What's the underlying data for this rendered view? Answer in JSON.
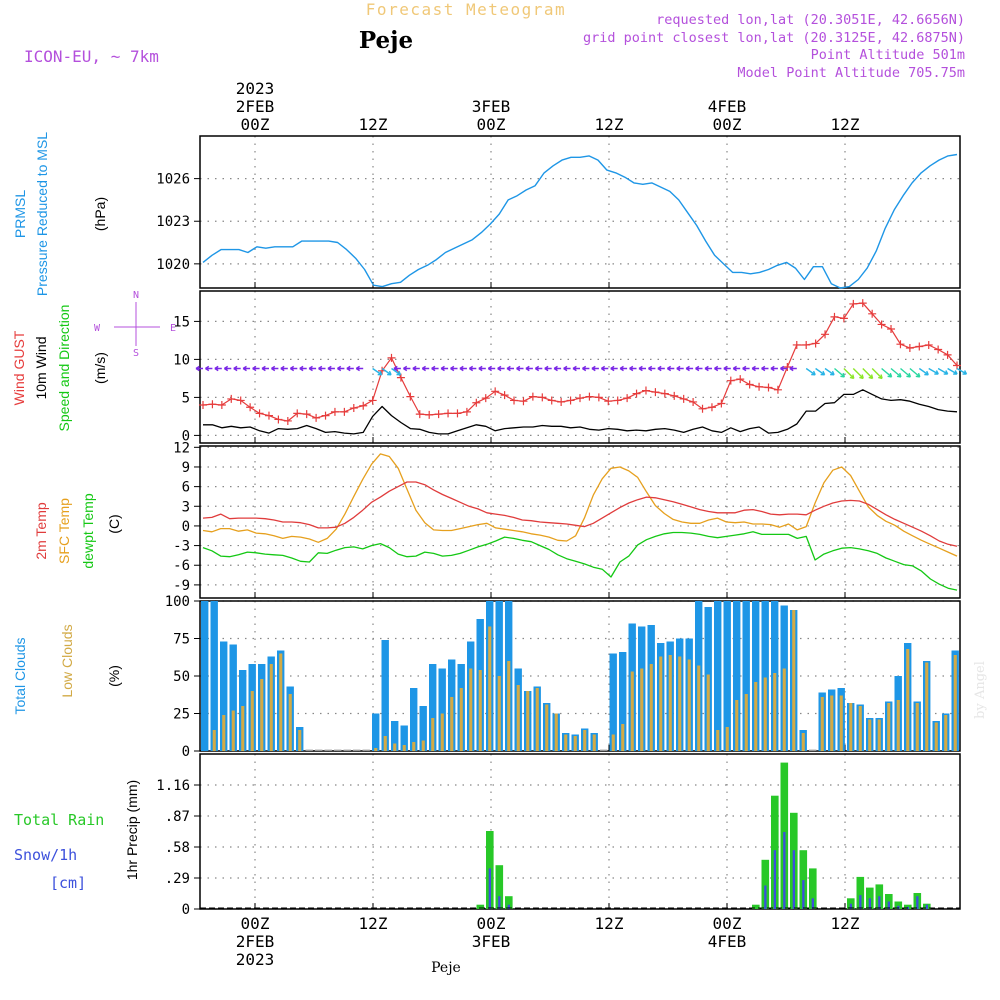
{
  "header": {
    "title": "Forecast Meteogram",
    "station": "Peje",
    "model": "ICON-EU, ~ 7km",
    "requested": "requested lon,lat (20.3051E, 42.6656N)",
    "gridpoint": "grid point closest lon,lat (20.3125E, 42.6875N)",
    "altitude": "Point Altitude 501m",
    "model_altitude": "Model Point Altitude 705.75m",
    "footer_station": "Peje",
    "credit": "by Angel"
  },
  "time_axis": {
    "top_labels": [
      {
        "lines": [
          "2023",
          "2FEB",
          "00Z"
        ]
      },
      {
        "lines": [
          "12Z"
        ]
      },
      {
        "lines": [
          "3FEB",
          "00Z"
        ]
      },
      {
        "lines": [
          "12Z"
        ]
      },
      {
        "lines": [
          "4FEB",
          "00Z"
        ]
      },
      {
        "lines": [
          "12Z"
        ]
      }
    ],
    "bottom_labels": [
      {
        "lines": [
          "00Z",
          "2FEB",
          "2023"
        ]
      },
      {
        "lines": [
          "12Z"
        ]
      },
      {
        "lines": [
          "00Z",
          "3FEB"
        ]
      },
      {
        "lines": [
          "12Z"
        ]
      },
      {
        "lines": [
          "00Z",
          "4FEB"
        ]
      },
      {
        "lines": [
          "12Z"
        ]
      }
    ]
  },
  "colors": {
    "pressure": "#1e96e6",
    "gust": "#e63c3c",
    "wind": "#000000",
    "t2m": "#e03c3c",
    "sfc": "#e6a01e",
    "dewpt": "#14c814",
    "total_clouds": "#1e96e6",
    "low_clouds": "#d2aa46",
    "rain": "#28c828",
    "snow": "#3c50dc",
    "magenta": "#b450dc",
    "grid": "#888888"
  },
  "chart_data": [
    {
      "type": "line",
      "panel": "pressure",
      "ylabel_lines": [
        "PRMSL",
        "Pressure Reduced to MSL"
      ],
      "unit": "(hPa)",
      "yticks": [
        1020,
        1023,
        1026
      ],
      "ylim": [
        1018.3,
        1029.0
      ],
      "series": [
        {
          "name": "PRMSL",
          "values": [
            1020.1,
            1020.6,
            1021.0,
            1021.0,
            1021.0,
            1020.8,
            1021.2,
            1021.1,
            1021.2,
            1021.2,
            1021.2,
            1021.6,
            1021.6,
            1021.6,
            1021.6,
            1021.5,
            1021.0,
            1020.4,
            1019.6,
            1018.5,
            1018.4,
            1018.6,
            1018.7,
            1019.2,
            1019.6,
            1019.9,
            1020.3,
            1020.8,
            1021.1,
            1021.4,
            1021.7,
            1022.2,
            1022.8,
            1023.5,
            1024.5,
            1024.8,
            1025.2,
            1025.5,
            1026.4,
            1026.9,
            1027.3,
            1027.5,
            1027.5,
            1027.6,
            1027.3,
            1026.6,
            1026.4,
            1026.1,
            1025.7,
            1025.6,
            1025.7,
            1025.4,
            1025.1,
            1024.5,
            1023.6,
            1022.7,
            1021.6,
            1020.6,
            1020.0,
            1019.4,
            1019.4,
            1019.3,
            1019.4,
            1019.6,
            1019.9,
            1020.1,
            1019.7,
            1018.9,
            1019.8,
            1019.8,
            1018.6,
            1018.3,
            1018.4,
            1018.9,
            1019.7,
            1020.9,
            1022.5,
            1023.8,
            1024.8,
            1025.7,
            1026.4,
            1026.9,
            1027.3,
            1027.6,
            1027.7
          ]
        }
      ]
    },
    {
      "type": "line",
      "panel": "wind",
      "ylabel_lines": [
        "Wind GUST",
        "10m Wind",
        "Speed and Direction"
      ],
      "unit": "(m/s)",
      "compass": {
        "n": "N",
        "s": "S",
        "w": "W",
        "e": "E"
      },
      "yticks": [
        0,
        5,
        10,
        15
      ],
      "ylim": [
        -1,
        19
      ],
      "series": [
        {
          "name": "Wind GUST",
          "values": [
            4.0,
            4.1,
            4.0,
            4.8,
            4.6,
            3.7,
            2.9,
            2.6,
            2.1,
            1.9,
            2.9,
            2.8,
            2.3,
            2.6,
            3.1,
            3.1,
            3.6,
            3.9,
            4.6,
            8.5,
            10.2,
            7.6,
            5.1,
            2.8,
            2.7,
            2.8,
            2.9,
            2.9,
            3.1,
            4.3,
            4.9,
            5.8,
            5.3,
            4.6,
            4.5,
            5.1,
            5.0,
            4.6,
            4.4,
            4.6,
            4.9,
            5.1,
            5.0,
            4.5,
            4.6,
            4.9,
            5.5,
            5.9,
            5.7,
            5.5,
            5.2,
            4.8,
            4.4,
            3.5,
            3.7,
            4.2,
            7.2,
            7.4,
            6.7,
            6.4,
            6.3,
            6.0,
            9.0,
            11.9,
            11.9,
            12.1,
            13.3,
            15.6,
            15.4,
            17.3,
            17.4,
            16.0,
            14.6,
            14.0,
            12.0,
            11.5,
            11.7,
            11.9,
            11.3,
            10.6,
            9.2
          ]
        },
        {
          "name": "10m Wind",
          "values": [
            1.4,
            1.4,
            1.0,
            1.2,
            1.0,
            1.1,
            0.6,
            0.3,
            0.9,
            0.8,
            0.9,
            1.3,
            0.9,
            0.4,
            0.5,
            0.3,
            0.2,
            0.4,
            2.5,
            3.8,
            2.6,
            1.7,
            0.9,
            0.8,
            0.4,
            0.2,
            0.2,
            0.6,
            1.0,
            1.4,
            1.2,
            0.6,
            0.9,
            1.0,
            1.1,
            1.1,
            1.3,
            1.2,
            1.2,
            1.0,
            1.1,
            0.8,
            0.7,
            0.9,
            0.8,
            0.6,
            0.7,
            0.6,
            0.8,
            0.9,
            0.7,
            0.4,
            0.8,
            1.1,
            0.6,
            0.4,
            1.0,
            0.5,
            0.9,
            1.1,
            0.3,
            0.4,
            0.8,
            1.5,
            3.2,
            3.2,
            4.2,
            4.3,
            5.4,
            5.4,
            6.0,
            5.4,
            4.8,
            4.6,
            4.7,
            4.5,
            4.1,
            3.8,
            3.4,
            3.2,
            3.1
          ]
        }
      ]
    },
    {
      "type": "line",
      "panel": "temperature",
      "ylabel_lines": [
        "2m Temp",
        "SFC Temp",
        "dewpt Temp"
      ],
      "unit": "(C)",
      "yticks": [
        -9,
        -6,
        -3,
        0,
        3,
        6,
        9,
        12
      ],
      "ylim": [
        -11,
        12.2
      ],
      "series": [
        {
          "name": "2m Temp",
          "values": [
            1.2,
            1.3,
            1.8,
            1.1,
            1.2,
            1.2,
            1.2,
            1.1,
            0.9,
            0.6,
            0.6,
            0.5,
            0.2,
            -0.3,
            -0.3,
            -0.2,
            0.4,
            1.3,
            2.4,
            3.6,
            4.4,
            5.3,
            6.0,
            6.7,
            6.7,
            6.3,
            5.5,
            4.8,
            4.2,
            3.6,
            3.0,
            2.6,
            2.0,
            1.8,
            1.6,
            1.3,
            0.9,
            0.8,
            0.6,
            0.5,
            0.4,
            0.3,
            0.1,
            -0.1,
            0.4,
            1.2,
            2.0,
            2.8,
            3.5,
            4.0,
            4.4,
            4.3,
            4.0,
            3.7,
            3.3,
            2.9,
            2.5,
            2.2,
            2.0,
            2.0,
            2.0,
            2.4,
            2.5,
            2.2,
            1.8,
            1.7,
            1.8,
            1.8,
            1.7,
            2.4,
            3.0,
            3.5,
            3.8,
            3.9,
            3.8,
            3.3,
            2.5,
            1.7,
            1.0,
            0.4,
            -0.2,
            -0.8,
            -1.5,
            -2.3,
            -2.8,
            -3.1
          ]
        },
        {
          "name": "SFC Temp",
          "values": [
            -0.7,
            -0.9,
            -0.4,
            -0.4,
            -0.8,
            -0.6,
            -1.1,
            -1.2,
            -1.5,
            -1.9,
            -1.6,
            -1.7,
            -2.0,
            -2.5,
            -1.9,
            -0.5,
            1.8,
            4.5,
            7.1,
            9.4,
            11.0,
            10.6,
            8.8,
            5.6,
            2.4,
            0.5,
            -0.6,
            -0.7,
            -0.7,
            -0.4,
            -0.1,
            0.2,
            0.4,
            -0.3,
            -0.5,
            -0.7,
            -0.9,
            -1.2,
            -1.4,
            -1.7,
            -2.2,
            -2.3,
            -1.5,
            1.2,
            4.7,
            7.2,
            8.8,
            9.0,
            8.4,
            7.4,
            5.2,
            3.1,
            1.9,
            1.0,
            0.6,
            0.4,
            0.4,
            0.9,
            1.2,
            0.6,
            0.5,
            0.6,
            0.3,
            0.3,
            0.2,
            -0.2,
            0.3,
            -0.6,
            -0.1,
            3.5,
            6.6,
            8.5,
            9.0,
            7.7,
            5.3,
            2.9,
            1.6,
            0.7,
            0.1,
            -0.8,
            -1.5,
            -2.2,
            -2.8,
            -3.4,
            -4.0,
            -4.6
          ]
        },
        {
          "name": "dewpt Temp",
          "values": [
            -3.3,
            -3.8,
            -4.6,
            -4.7,
            -4.4,
            -4.0,
            -4.1,
            -4.3,
            -4.4,
            -4.5,
            -4.9,
            -5.4,
            -5.5,
            -4.1,
            -4.2,
            -3.7,
            -3.3,
            -3.2,
            -3.5,
            -3.0,
            -2.7,
            -3.3,
            -4.3,
            -4.7,
            -4.6,
            -4.0,
            -4.2,
            -4.6,
            -4.5,
            -4.2,
            -3.7,
            -3.2,
            -2.8,
            -2.3,
            -1.7,
            -1.9,
            -2.2,
            -2.4,
            -3.0,
            -3.6,
            -4.4,
            -5.0,
            -5.4,
            -5.8,
            -6.3,
            -6.6,
            -7.8,
            -5.5,
            -4.6,
            -2.9,
            -2.1,
            -1.6,
            -1.2,
            -1.0,
            -1.0,
            -1.1,
            -1.3,
            -1.6,
            -1.8,
            -1.6,
            -1.4,
            -1.2,
            -0.9,
            -1.3,
            -1.3,
            -1.3,
            -1.3,
            -1.9,
            -1.6,
            -5.2,
            -4.3,
            -3.8,
            -3.4,
            -3.3,
            -3.5,
            -3.8,
            -4.2,
            -4.9,
            -5.4,
            -5.9,
            -6.1,
            -6.9,
            -8.1,
            -8.9,
            -9.5,
            -9.8
          ]
        }
      ]
    },
    {
      "type": "bar",
      "panel": "clouds",
      "ylabel_lines": [
        "Total Clouds",
        "Low Clouds"
      ],
      "unit": "(%)",
      "yticks": [
        0,
        25,
        50,
        75,
        100
      ],
      "ylim": [
        0,
        100
      ],
      "series": [
        {
          "name": "Total Clouds",
          "values": [
            100,
            100,
            73,
            71,
            54,
            58,
            58,
            63,
            67,
            43,
            16,
            0,
            0,
            0,
            0,
            0,
            0,
            0,
            25,
            74,
            20,
            17,
            42,
            30,
            58,
            55,
            61,
            58,
            73,
            88,
            100,
            100,
            100,
            55,
            40,
            43,
            32,
            25,
            12,
            11,
            15,
            12,
            0,
            65,
            66,
            85,
            83,
            84,
            72,
            73,
            75,
            75,
            100,
            96,
            100,
            100,
            100,
            100,
            100,
            100,
            100,
            97,
            94,
            14,
            0,
            39,
            41,
            42,
            32,
            31,
            22,
            22,
            33,
            50,
            72,
            33,
            60,
            20,
            25,
            67
          ]
        },
        {
          "name": "Low Clouds",
          "values": [
            0,
            14,
            24,
            27,
            30,
            40,
            48,
            58,
            65,
            38,
            14,
            0,
            0,
            0,
            0,
            0,
            0,
            0,
            2,
            10,
            5,
            4,
            6,
            7,
            22,
            25,
            36,
            42,
            55,
            54,
            83,
            50,
            60,
            44,
            40,
            42,
            31,
            25,
            11,
            10,
            14,
            11,
            0,
            11,
            18,
            53,
            55,
            58,
            63,
            64,
            63,
            61,
            57,
            51,
            14,
            16,
            34,
            38,
            46,
            49,
            52,
            55,
            94,
            12,
            0,
            36,
            37,
            37,
            32,
            30,
            21,
            21,
            32,
            34,
            68,
            32,
            59,
            19,
            24,
            64
          ]
        }
      ]
    },
    {
      "type": "bar",
      "panel": "precip",
      "ylabel_lines": [
        "1hr Precip (mm)"
      ],
      "legend": {
        "rain": "Total Rain",
        "snow": "Snow/1h",
        "snow_unit": "[cm]"
      },
      "yticks": [
        0,
        0.29,
        0.58,
        0.87,
        1.16
      ],
      "ylim": [
        0,
        1.45
      ],
      "series": [
        {
          "name": "Total Rain",
          "values": [
            0,
            0,
            0,
            0,
            0,
            0,
            0,
            0,
            0,
            0,
            0,
            0,
            0,
            0,
            0,
            0,
            0,
            0,
            0,
            0,
            0,
            0,
            0,
            0,
            0,
            0,
            0,
            0,
            0,
            0.04,
            0.73,
            0.41,
            0.12,
            0,
            0,
            0,
            0,
            0,
            0,
            0,
            0,
            0,
            0,
            0,
            0,
            0,
            0,
            0,
            0,
            0,
            0,
            0,
            0,
            0,
            0,
            0,
            0,
            0,
            0.04,
            0.46,
            1.06,
            1.37,
            0.9,
            0.55,
            0.38,
            0,
            0,
            0,
            0.1,
            0.3,
            0.2,
            0.23,
            0.14,
            0.07,
            0.04,
            0.15,
            0.05,
            0,
            0,
            0
          ]
        },
        {
          "name": "Snow/1h",
          "values": [
            0,
            0,
            0,
            0,
            0,
            0,
            0,
            0,
            0,
            0,
            0,
            0,
            0,
            0,
            0,
            0,
            0,
            0,
            0,
            0,
            0,
            0,
            0,
            0,
            0,
            0,
            0,
            0,
            0,
            0,
            0.38,
            0.12,
            0.04,
            0,
            0,
            0,
            0,
            0,
            0,
            0,
            0,
            0,
            0,
            0,
            0,
            0,
            0,
            0,
            0,
            0,
            0,
            0,
            0,
            0,
            0,
            0,
            0,
            0,
            0,
            0.22,
            0.55,
            0.72,
            0.55,
            0.27,
            0.1,
            0,
            0,
            0,
            0.05,
            0.13,
            0.1,
            0.12,
            0.07,
            0.03,
            0.02,
            0.12,
            0.04,
            0,
            0,
            0
          ]
        }
      ]
    }
  ]
}
